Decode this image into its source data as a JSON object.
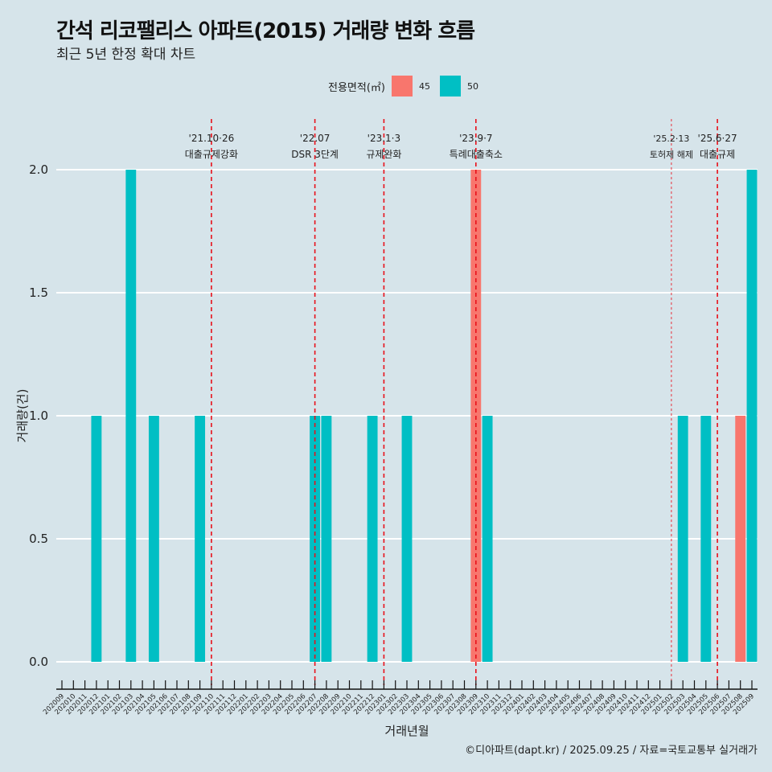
{
  "chart_data": {
    "type": "bar",
    "title": "간석 리코팰리스 아파트(2015) 거래량 변화 흐름",
    "subtitle": "최근 5년 한정 확대 차트",
    "xlabel": "거래년월",
    "ylabel": "거래량(건)",
    "ylim": [
      0,
      2
    ],
    "yticks": [
      "0.0",
      "0.5",
      "1.0",
      "1.5",
      "2.0"
    ],
    "legend": {
      "title": "전용면적(㎡)",
      "position": "top",
      "entries": [
        {
          "name": "45",
          "color": "#f8766d"
        },
        {
          "name": "50",
          "color": "#00bfc4"
        }
      ]
    },
    "categories": [
      "202009",
      "202010",
      "202011",
      "202012",
      "202101",
      "202102",
      "202103",
      "202104",
      "202105",
      "202106",
      "202107",
      "202108",
      "202109",
      "202110",
      "202111",
      "202112",
      "202201",
      "202202",
      "202203",
      "202204",
      "202205",
      "202206",
      "202207",
      "202208",
      "202209",
      "202210",
      "202211",
      "202212",
      "202301",
      "202302",
      "202303",
      "202304",
      "202305",
      "202306",
      "202307",
      "202308",
      "202309",
      "202310",
      "202311",
      "202312",
      "202401",
      "202402",
      "202403",
      "202404",
      "202405",
      "202406",
      "202407",
      "202408",
      "202409",
      "202410",
      "202411",
      "202412",
      "202501",
      "202502",
      "202503",
      "202504",
      "202505",
      "202506",
      "202507",
      "202508",
      "202509"
    ],
    "series": [
      {
        "name": "45",
        "color": "#f8766d",
        "points": [
          {
            "x": "202309",
            "y": 2
          },
          {
            "x": "202508",
            "y": 1
          }
        ]
      },
      {
        "name": "50",
        "color": "#00bfc4",
        "points": [
          {
            "x": "202012",
            "y": 1
          },
          {
            "x": "202103",
            "y": 2
          },
          {
            "x": "202105",
            "y": 1
          },
          {
            "x": "202109",
            "y": 1
          },
          {
            "x": "202207",
            "y": 1
          },
          {
            "x": "202208",
            "y": 1
          },
          {
            "x": "202212",
            "y": 1
          },
          {
            "x": "202303",
            "y": 1
          },
          {
            "x": "202310",
            "y": 1
          },
          {
            "x": "202503",
            "y": 1
          },
          {
            "x": "202505",
            "y": 1
          },
          {
            "x": "202509",
            "y": 2
          }
        ]
      }
    ],
    "annotations": [
      {
        "x": "202110",
        "date": "'21.10·26",
        "label": "대출규제강화",
        "style": "major"
      },
      {
        "x": "202207",
        "date": "'22.07",
        "label": "DSR 3단계",
        "style": "major"
      },
      {
        "x": "202301",
        "date": "'23.1·3",
        "label": "규제완화",
        "style": "major"
      },
      {
        "x": "202309",
        "date": "'23.9·7",
        "label": "특례대출축소",
        "style": "major"
      },
      {
        "x": "202502",
        "date": "'25.2·13",
        "label": "토허제 해제",
        "style": "minor"
      },
      {
        "x": "202506",
        "date": "'25.6·27",
        "label": "대출규제",
        "style": "major"
      }
    ]
  },
  "caption": "©디아파트(dapt.kr) / 2025.09.25 / 자료=국토교통부 실거래가"
}
